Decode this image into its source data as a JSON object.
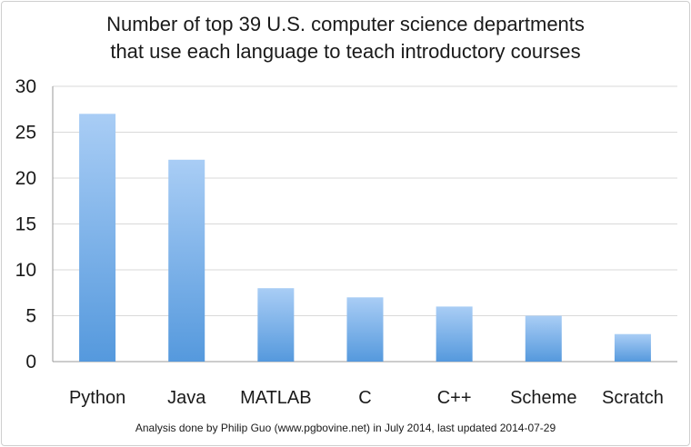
{
  "chart_data": {
    "type": "bar",
    "title": [
      "Number of top 39 U.S. computer science departments",
      "that use each language to teach introductory courses"
    ],
    "categories": [
      "Python",
      "Java",
      "MATLAB",
      "C",
      "C++",
      "Scheme",
      "Scratch"
    ],
    "values": [
      27,
      22,
      8,
      7,
      6,
      5,
      3
    ],
    "xlabel": "",
    "ylabel": "",
    "ylim": [
      0,
      30
    ],
    "yticks": [
      0,
      5,
      10,
      15,
      20,
      25,
      30
    ],
    "grid": true,
    "legend": "none",
    "colors": {
      "bar_top": "#a9cdf5",
      "bar_bottom": "#5599dd",
      "grid": "#d9d9d9",
      "axis": "#999999"
    },
    "footnote": "Analysis done by Philip Guo (www.pgbovine.net) in July 2014, last updated 2014-07-29"
  }
}
